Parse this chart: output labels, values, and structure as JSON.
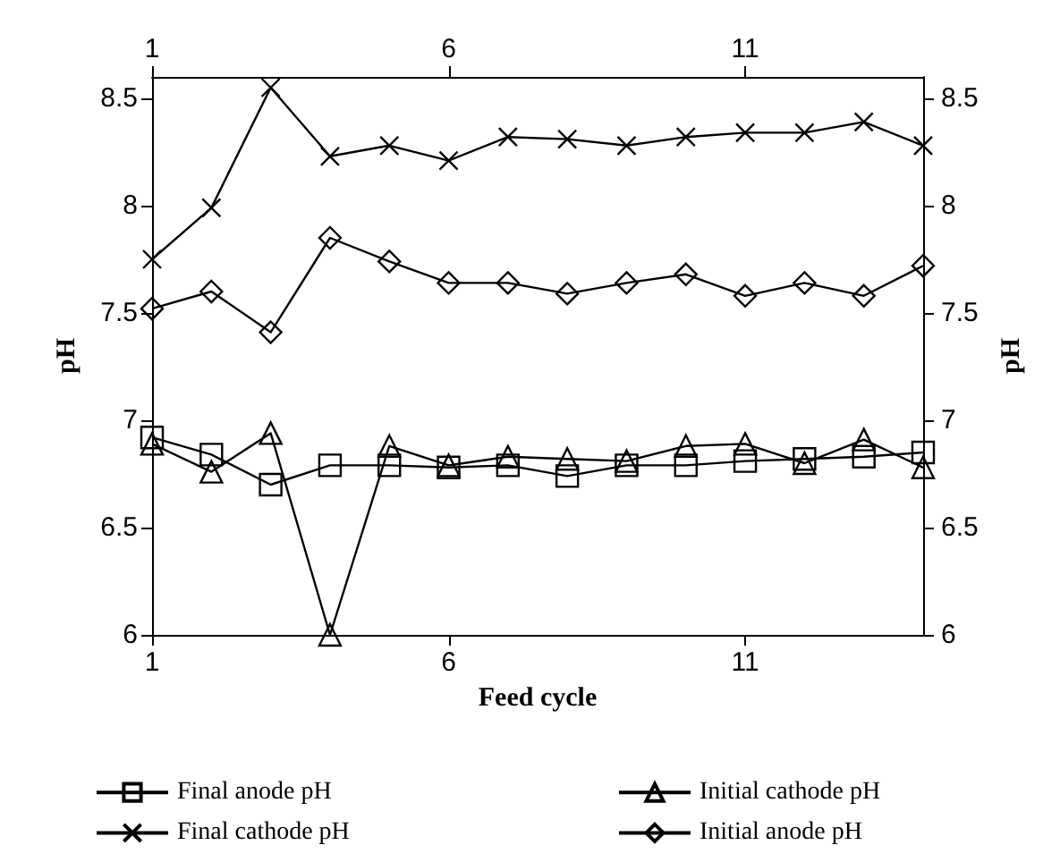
{
  "chart_data": {
    "type": "line",
    "xlabel": "Feed cycle",
    "ylabel": "pH",
    "y2label": "pH",
    "x": [
      1,
      2,
      3,
      4,
      5,
      6,
      7,
      8,
      9,
      10,
      11,
      12,
      13,
      14
    ],
    "xlim": [
      1,
      14
    ],
    "xticks": [
      1,
      6,
      11
    ],
    "x2lim": [
      1,
      14
    ],
    "x2ticks": [
      1,
      6,
      11
    ],
    "ylim": [
      6,
      8.6
    ],
    "yticks": [
      6,
      6.5,
      7,
      7.5,
      8,
      8.5
    ],
    "y2lim": [
      6,
      8.6
    ],
    "y2ticks": [
      6,
      6.5,
      7,
      7.5,
      8,
      8.5
    ],
    "grid": false,
    "legend": "bottom",
    "line_style": "solid",
    "series": [
      {
        "name": "Final anode pH",
        "color": "#000000",
        "marker": "square",
        "values": [
          6.92,
          6.84,
          6.7,
          6.79,
          6.79,
          6.78,
          6.79,
          6.74,
          6.79,
          6.79,
          6.81,
          6.82,
          6.83,
          6.85
        ]
      },
      {
        "name": "Initial cathode pH",
        "color": "#000000",
        "marker": "triangle",
        "values": [
          6.89,
          6.76,
          6.94,
          6.0,
          6.88,
          6.79,
          6.83,
          6.82,
          6.81,
          6.88,
          6.89,
          6.8,
          6.91,
          6.78
        ]
      },
      {
        "name": "Final cathode pH",
        "color": "#000000",
        "marker": "cross",
        "values": [
          7.75,
          7.99,
          8.55,
          8.23,
          8.28,
          8.21,
          8.32,
          8.31,
          8.28,
          8.32,
          8.34,
          8.34,
          8.39,
          8.28
        ]
      },
      {
        "name": "Initial anode pH",
        "color": "#000000",
        "marker": "diamond",
        "values": [
          7.52,
          7.6,
          7.41,
          7.85,
          7.74,
          7.64,
          7.64,
          7.59,
          7.64,
          7.68,
          7.58,
          7.64,
          7.58,
          7.72
        ]
      }
    ]
  }
}
